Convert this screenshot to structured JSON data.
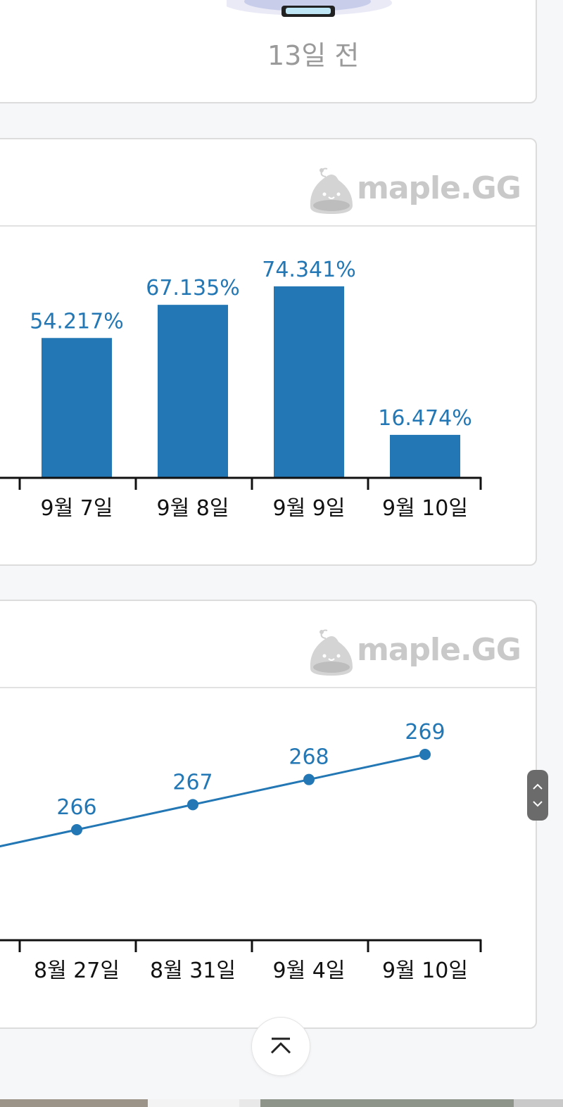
{
  "top_card": {
    "time_ago": "13일 전"
  },
  "watermark": {
    "text": "maple.GG"
  },
  "chart_data": [
    {
      "type": "bar",
      "categories": [
        "9월 7일",
        "9월 8일",
        "9월 9일",
        "9월 10일"
      ],
      "values": [
        54.217,
        67.135,
        74.341,
        16.474
      ],
      "value_labels": [
        "54.217%",
        "67.135%",
        "74.341%",
        "16.474%"
      ],
      "ylim": [
        0,
        85
      ],
      "color": "#2277b4"
    },
    {
      "type": "line",
      "categories": [
        "8월 27일",
        "8월 31일",
        "9월 4일",
        "9월 10일"
      ],
      "values": [
        266,
        267,
        268,
        269
      ],
      "value_labels": [
        "266",
        "267",
        "268",
        "269"
      ],
      "ylim": [
        260,
        271
      ],
      "color": "#2277b4"
    }
  ]
}
